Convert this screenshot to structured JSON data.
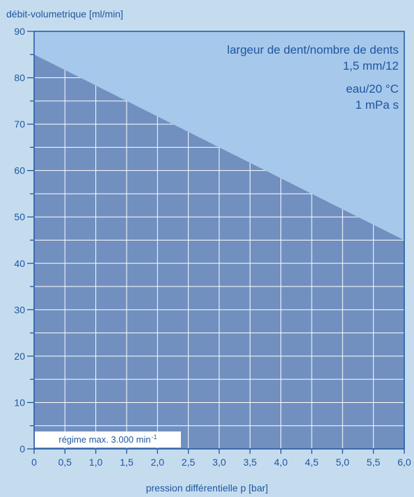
{
  "chart_data": {
    "type": "area",
    "ylabel": "débit-volumetrique [ml/min]",
    "xlabel": "pression différentielle p [bar]",
    "xlim": [
      0,
      6.0
    ],
    "ylim": [
      0,
      90
    ],
    "x_ticks": [
      "0",
      "0,5",
      "1,0",
      "1,5",
      "2,0",
      "2,5",
      "3,0",
      "3,5",
      "4,0",
      "4,5",
      "5,0",
      "5,5",
      "6,0"
    ],
    "y_ticks": [
      "0",
      "10",
      "20",
      "30",
      "40",
      "50",
      "60",
      "70",
      "80",
      "90"
    ],
    "grid": true,
    "x": [
      0,
      6.0
    ],
    "y": [
      85,
      45
    ],
    "annotations": {
      "line1": "largeur de dent/nombre de dents",
      "line2": "1,5 mm/12",
      "line3": "eau/20 °C",
      "line4": "1 mPa s"
    },
    "regime": {
      "text": "régime max. 3.000 min",
      "sup": "-1"
    },
    "colors": {
      "background": "#c5dcef",
      "plot_background": "#a6c8ea",
      "area_fill": "#7190c0",
      "axis": "#1f56a0",
      "grid": "#ffffff"
    }
  }
}
